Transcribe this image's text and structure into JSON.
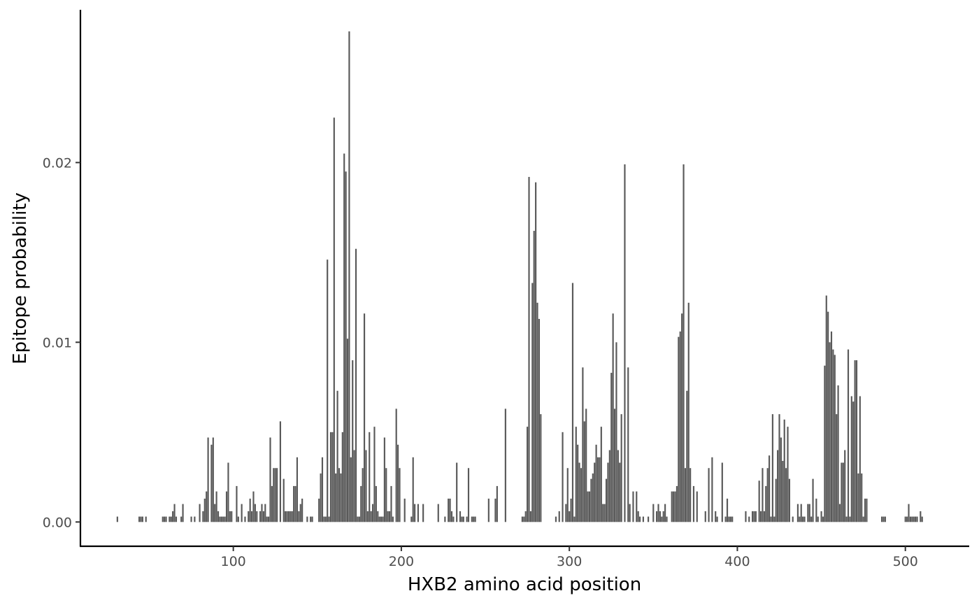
{
  "chart_data": {
    "type": "bar",
    "title": "",
    "xlabel": "HXB2 amino acid position",
    "ylabel": "Epitope probability",
    "xlim": [
      9,
      538
    ],
    "ylim": [
      -0.00135,
      0.0285
    ],
    "x_ticks": [
      100,
      200,
      300,
      400,
      500
    ],
    "x_tick_labels": [
      "100",
      "200",
      "300",
      "400",
      "500"
    ],
    "y_ticks": [
      0,
      0.01,
      0.02
    ],
    "y_tick_labels": [
      "0.00",
      "0.01",
      "0.02"
    ],
    "grid": false,
    "bar_color": "#595959",
    "points": [
      [
        31,
        0.0003
      ],
      [
        44,
        0.0003
      ],
      [
        45,
        0.0003
      ],
      [
        46,
        0.0003
      ],
      [
        48,
        0.0003
      ],
      [
        58,
        0.0003
      ],
      [
        59,
        0.0003
      ],
      [
        60,
        0.0003
      ],
      [
        62,
        0.0003
      ],
      [
        63,
        0.0003
      ],
      [
        64,
        0.0006
      ],
      [
        65,
        0.001
      ],
      [
        66,
        0.0003
      ],
      [
        69,
        0.0003
      ],
      [
        70,
        0.001
      ],
      [
        75,
        0.0003
      ],
      [
        77,
        0.0003
      ],
      [
        80,
        0.001
      ],
      [
        82,
        0.0006
      ],
      [
        83,
        0.0013
      ],
      [
        84,
        0.0017
      ],
      [
        85,
        0.0047
      ],
      [
        87,
        0.0043
      ],
      [
        88,
        0.0047
      ],
      [
        89,
        0.001
      ],
      [
        90,
        0.0017
      ],
      [
        91,
        0.0006
      ],
      [
        92,
        0.0003
      ],
      [
        93,
        0.0003
      ],
      [
        94,
        0.0003
      ],
      [
        95,
        0.0003
      ],
      [
        96,
        0.0017
      ],
      [
        97,
        0.0033
      ],
      [
        98,
        0.0006
      ],
      [
        99,
        0.0006
      ],
      [
        102,
        0.002
      ],
      [
        103,
        0.0003
      ],
      [
        105,
        0.001
      ],
      [
        107,
        0.0003
      ],
      [
        109,
        0.0006
      ],
      [
        110,
        0.0013
      ],
      [
        111,
        0.0006
      ],
      [
        112,
        0.0017
      ],
      [
        113,
        0.001
      ],
      [
        114,
        0.0006
      ],
      [
        116,
        0.0006
      ],
      [
        117,
        0.001
      ],
      [
        118,
        0.0006
      ],
      [
        119,
        0.001
      ],
      [
        120,
        0.0003
      ],
      [
        121,
        0.0003
      ],
      [
        122,
        0.0047
      ],
      [
        123,
        0.002
      ],
      [
        124,
        0.003
      ],
      [
        125,
        0.003
      ],
      [
        126,
        0.003
      ],
      [
        128,
        0.0056
      ],
      [
        130,
        0.0024
      ],
      [
        131,
        0.0006
      ],
      [
        132,
        0.0006
      ],
      [
        133,
        0.0006
      ],
      [
        134,
        0.0006
      ],
      [
        135,
        0.0006
      ],
      [
        136,
        0.002
      ],
      [
        137,
        0.002
      ],
      [
        138,
        0.0036
      ],
      [
        139,
        0.0006
      ],
      [
        140,
        0.001
      ],
      [
        141,
        0.0013
      ],
      [
        144,
        0.0003
      ],
      [
        146,
        0.0003
      ],
      [
        147,
        0.0003
      ],
      [
        151,
        0.0013
      ],
      [
        152,
        0.0027
      ],
      [
        153,
        0.0036
      ],
      [
        154,
        0.0003
      ],
      [
        155,
        0.0003
      ],
      [
        156,
        0.0146
      ],
      [
        157,
        0.0003
      ],
      [
        158,
        0.005
      ],
      [
        159,
        0.005
      ],
      [
        160,
        0.0225
      ],
      [
        161,
        0.0027
      ],
      [
        162,
        0.0073
      ],
      [
        163,
        0.003
      ],
      [
        164,
        0.0027
      ],
      [
        165,
        0.005
      ],
      [
        166,
        0.0205
      ],
      [
        167,
        0.0195
      ],
      [
        168,
        0.0102
      ],
      [
        169,
        0.0273
      ],
      [
        170,
        0.0036
      ],
      [
        171,
        0.009
      ],
      [
        172,
        0.004
      ],
      [
        173,
        0.0152
      ],
      [
        174,
        0.0003
      ],
      [
        175,
        0.0003
      ],
      [
        176,
        0.002
      ],
      [
        177,
        0.003
      ],
      [
        178,
        0.0116
      ],
      [
        179,
        0.004
      ],
      [
        180,
        0.0006
      ],
      [
        181,
        0.005
      ],
      [
        182,
        0.0006
      ],
      [
        183,
        0.001
      ],
      [
        184,
        0.0053
      ],
      [
        185,
        0.002
      ],
      [
        186,
        0.0006
      ],
      [
        187,
        0.0003
      ],
      [
        188,
        0.0003
      ],
      [
        189,
        0.0003
      ],
      [
        190,
        0.0047
      ],
      [
        191,
        0.003
      ],
      [
        192,
        0.0006
      ],
      [
        193,
        0.0006
      ],
      [
        194,
        0.002
      ],
      [
        195,
        0.0003
      ],
      [
        197,
        0.0063
      ],
      [
        198,
        0.0043
      ],
      [
        199,
        0.003
      ],
      [
        202,
        0.0013
      ],
      [
        206,
        0.0003
      ],
      [
        207,
        0.0036
      ],
      [
        208,
        0.001
      ],
      [
        210,
        0.001
      ],
      [
        213,
        0.001
      ],
      [
        222,
        0.001
      ],
      [
        226,
        0.0003
      ],
      [
        228,
        0.0013
      ],
      [
        229,
        0.0013
      ],
      [
        230,
        0.0006
      ],
      [
        231,
        0.0003
      ],
      [
        233,
        0.0033
      ],
      [
        235,
        0.0006
      ],
      [
        236,
        0.0003
      ],
      [
        237,
        0.0003
      ],
      [
        239,
        0.0003
      ],
      [
        240,
        0.003
      ],
      [
        242,
        0.0003
      ],
      [
        243,
        0.0003
      ],
      [
        244,
        0.0003
      ],
      [
        252,
        0.0013
      ],
      [
        256,
        0.0013
      ],
      [
        257,
        0.002
      ],
      [
        262,
        0.0063
      ],
      [
        272,
        0.0003
      ],
      [
        273,
        0.0003
      ],
      [
        274,
        0.0006
      ],
      [
        275,
        0.0053
      ],
      [
        276,
        0.0192
      ],
      [
        277,
        0.0006
      ],
      [
        278,
        0.0133
      ],
      [
        279,
        0.0162
      ],
      [
        280,
        0.0189
      ],
      [
        281,
        0.0122
      ],
      [
        282,
        0.0113
      ],
      [
        283,
        0.006
      ],
      [
        292,
        0.0003
      ],
      [
        294,
        0.0006
      ],
      [
        296,
        0.005
      ],
      [
        298,
        0.001
      ],
      [
        299,
        0.003
      ],
      [
        300,
        0.0006
      ],
      [
        301,
        0.0013
      ],
      [
        302,
        0.0133
      ],
      [
        303,
        0.0003
      ],
      [
        304,
        0.0053
      ],
      [
        305,
        0.0043
      ],
      [
        306,
        0.0033
      ],
      [
        307,
        0.003
      ],
      [
        308,
        0.0086
      ],
      [
        309,
        0.0056
      ],
      [
        310,
        0.0063
      ],
      [
        311,
        0.0017
      ],
      [
        312,
        0.0017
      ],
      [
        313,
        0.0024
      ],
      [
        314,
        0.0027
      ],
      [
        315,
        0.0033
      ],
      [
        316,
        0.0043
      ],
      [
        317,
        0.0036
      ],
      [
        318,
        0.0036
      ],
      [
        319,
        0.0053
      ],
      [
        320,
        0.001
      ],
      [
        321,
        0.001
      ],
      [
        322,
        0.0024
      ],
      [
        323,
        0.0033
      ],
      [
        324,
        0.004
      ],
      [
        325,
        0.0083
      ],
      [
        326,
        0.0116
      ],
      [
        327,
        0.0063
      ],
      [
        328,
        0.01
      ],
      [
        329,
        0.004
      ],
      [
        330,
        0.0033
      ],
      [
        331,
        0.006
      ],
      [
        333,
        0.0199
      ],
      [
        335,
        0.0086
      ],
      [
        336,
        0.001
      ],
      [
        338,
        0.0017
      ],
      [
        340,
        0.0017
      ],
      [
        341,
        0.0006
      ],
      [
        342,
        0.0003
      ],
      [
        344,
        0.0003
      ],
      [
        347,
        0.0003
      ],
      [
        350,
        0.001
      ],
      [
        352,
        0.0006
      ],
      [
        353,
        0.001
      ],
      [
        354,
        0.0006
      ],
      [
        355,
        0.0003
      ],
      [
        356,
        0.0006
      ],
      [
        357,
        0.001
      ],
      [
        358,
        0.0003
      ],
      [
        361,
        0.0017
      ],
      [
        362,
        0.0017
      ],
      [
        363,
        0.0017
      ],
      [
        364,
        0.002
      ],
      [
        365,
        0.0103
      ],
      [
        366,
        0.0106
      ],
      [
        367,
        0.0116
      ],
      [
        368,
        0.0199
      ],
      [
        369,
        0.003
      ],
      [
        370,
        0.0073
      ],
      [
        371,
        0.0122
      ],
      [
        372,
        0.003
      ],
      [
        374,
        0.002
      ],
      [
        376,
        0.0017
      ],
      [
        381,
        0.0006
      ],
      [
        383,
        0.003
      ],
      [
        385,
        0.0036
      ],
      [
        387,
        0.0006
      ],
      [
        388,
        0.0003
      ],
      [
        391,
        0.0033
      ],
      [
        393,
        0.0003
      ],
      [
        394,
        0.0013
      ],
      [
        395,
        0.0003
      ],
      [
        396,
        0.0003
      ],
      [
        397,
        0.0003
      ],
      [
        405,
        0.0006
      ],
      [
        407,
        0.0003
      ],
      [
        409,
        0.0006
      ],
      [
        410,
        0.0006
      ],
      [
        411,
        0.0006
      ],
      [
        413,
        0.0023
      ],
      [
        414,
        0.0006
      ],
      [
        415,
        0.003
      ],
      [
        416,
        0.0006
      ],
      [
        417,
        0.002
      ],
      [
        418,
        0.003
      ],
      [
        419,
        0.0037
      ],
      [
        420,
        0.0003
      ],
      [
        421,
        0.006
      ],
      [
        422,
        0.0003
      ],
      [
        423,
        0.0024
      ],
      [
        424,
        0.004
      ],
      [
        425,
        0.006
      ],
      [
        426,
        0.0047
      ],
      [
        427,
        0.0034
      ],
      [
        428,
        0.0057
      ],
      [
        429,
        0.003
      ],
      [
        430,
        0.0053
      ],
      [
        431,
        0.0024
      ],
      [
        433,
        0.0003
      ],
      [
        436,
        0.001
      ],
      [
        437,
        0.0003
      ],
      [
        438,
        0.001
      ],
      [
        439,
        0.0003
      ],
      [
        440,
        0.0003
      ],
      [
        442,
        0.001
      ],
      [
        443,
        0.001
      ],
      [
        444,
        0.0003
      ],
      [
        445,
        0.0024
      ],
      [
        447,
        0.0013
      ],
      [
        448,
        0.0003
      ],
      [
        450,
        0.0006
      ],
      [
        451,
        0.0003
      ],
      [
        452,
        0.0087
      ],
      [
        453,
        0.0126
      ],
      [
        454,
        0.0117
      ],
      [
        455,
        0.01
      ],
      [
        456,
        0.0106
      ],
      [
        457,
        0.0096
      ],
      [
        458,
        0.0093
      ],
      [
        459,
        0.006
      ],
      [
        460,
        0.0076
      ],
      [
        461,
        0.001
      ],
      [
        462,
        0.0033
      ],
      [
        463,
        0.0033
      ],
      [
        464,
        0.004
      ],
      [
        465,
        0.0003
      ],
      [
        466,
        0.0096
      ],
      [
        467,
        0.0003
      ],
      [
        468,
        0.007
      ],
      [
        469,
        0.0067
      ],
      [
        470,
        0.009
      ],
      [
        471,
        0.009
      ],
      [
        472,
        0.0027
      ],
      [
        473,
        0.007
      ],
      [
        474,
        0.0027
      ],
      [
        475,
        0.0003
      ],
      [
        476,
        0.0013
      ],
      [
        477,
        0.0013
      ],
      [
        486,
        0.0003
      ],
      [
        487,
        0.0003
      ],
      [
        488,
        0.0003
      ],
      [
        500,
        0.0003
      ],
      [
        501,
        0.0003
      ],
      [
        502,
        0.001
      ],
      [
        503,
        0.0003
      ],
      [
        504,
        0.0003
      ],
      [
        505,
        0.0003
      ],
      [
        506,
        0.0003
      ],
      [
        507,
        0.0003
      ],
      [
        509,
        0.0006
      ],
      [
        510,
        0.0003
      ]
    ]
  }
}
